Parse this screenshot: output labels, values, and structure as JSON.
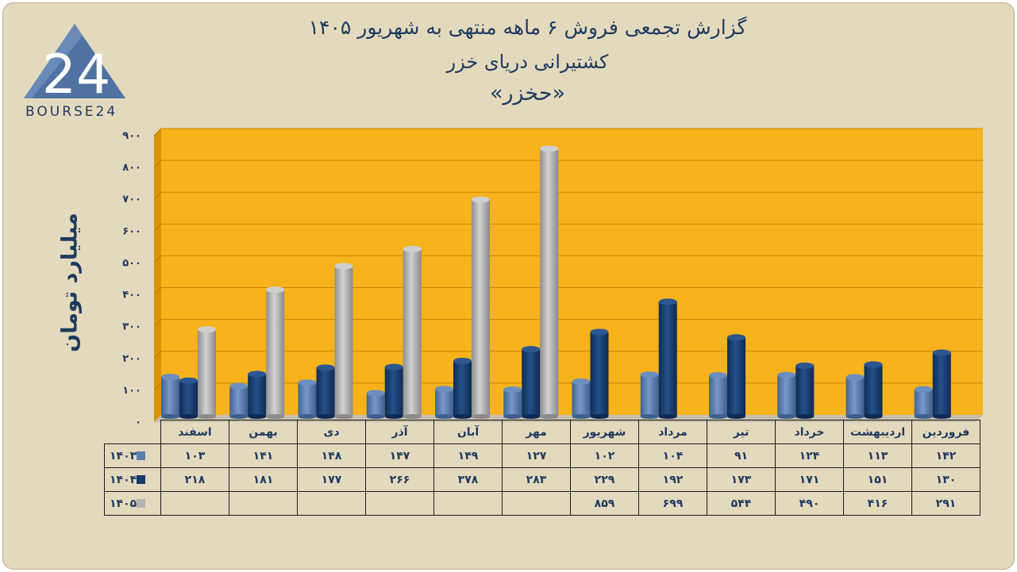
{
  "title": {
    "line1": "گزارش تجمعی فروش ۶ ماهه منتهی به شهریور ۱۴۰۵",
    "line2": "کشتیرانی دریای خزر",
    "line3": "«حخزر»"
  },
  "logo": {
    "text": "BOURSE24",
    "mark": "24"
  },
  "colors": {
    "background": "#e3d9bd",
    "plot_area": "#f7b21c",
    "series_1403": "#5b7fb0",
    "series_1404": "#163a6b",
    "series_1405": "#b3b3b3",
    "text": "#1e3a5f"
  },
  "chart_data": {
    "type": "bar",
    "title": "گزارش تجمعی فروش ۶ ماهه منتهی به شهریور ۱۴۰۵",
    "ylabel": "میلیارد تومان",
    "ylim": [
      0,
      900
    ],
    "yticks": [
      "۰",
      "۱۰۰",
      "۲۰۰",
      "۳۰۰",
      "۴۰۰",
      "۵۰۰",
      "۶۰۰",
      "۷۰۰",
      "۸۰۰",
      "۹۰۰"
    ],
    "categories": [
      "فروردین",
      "اردیبهشت",
      "خرداد",
      "تیر",
      "مرداد",
      "شهریور",
      "مهر",
      "آبان",
      "آذر",
      "دی",
      "بهمن",
      "اسفند"
    ],
    "series": [
      {
        "name": "۱۴۰۳",
        "values": [
          142,
          113,
          124,
          91,
          104,
          102,
          127,
          149,
          147,
          148,
          141,
          103
        ],
        "labels": [
          "۱۴۲",
          "۱۱۳",
          "۱۲۴",
          "۹۱",
          "۱۰۴",
          "۱۰۲",
          "۱۲۷",
          "۱۴۹",
          "۱۴۷",
          "۱۴۸",
          "۱۴۱",
          "۱۰۳"
        ]
      },
      {
        "name": "۱۴۰۴",
        "values": [
          130,
          151,
          171,
          173,
          192,
          229,
          283,
          378,
          266,
          177,
          181,
          218
        ],
        "labels": [
          "۱۳۰",
          "۱۵۱",
          "۱۷۱",
          "۱۷۳",
          "۱۹۲",
          "۲۲۹",
          "۲۸۳",
          "۳۷۸",
          "۲۶۶",
          "۱۷۷",
          "۱۸۱",
          "۲۱۸"
        ]
      },
      {
        "name": "۱۴۰۵",
        "values": [
          291,
          416,
          490,
          544,
          699,
          859,
          null,
          null,
          null,
          null,
          null,
          null
        ],
        "labels": [
          "۲۹۱",
          "۴۱۶",
          "۴۹۰",
          "۵۴۴",
          "۶۹۹",
          "۸۵۹",
          "",
          "",
          "",
          "",
          "",
          ""
        ]
      }
    ],
    "grid": true,
    "legend": "data-table"
  }
}
